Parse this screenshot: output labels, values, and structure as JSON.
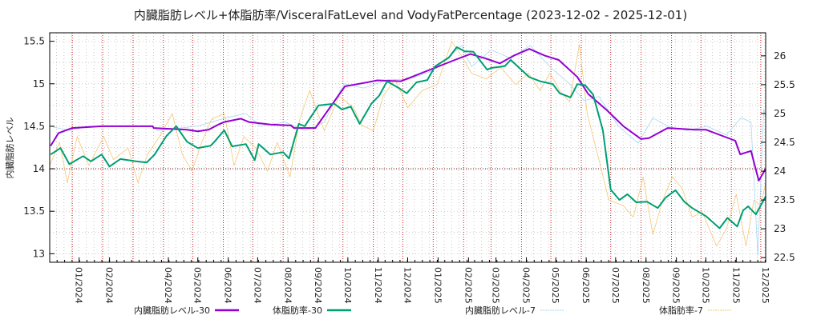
{
  "chart_data": {
    "type": "line",
    "title": "内臓脂肪レベル+体脂肪率/VisceralFatLevel and VodyFatPercentage (2023-12-02 - 2025-12-01)",
    "ylabel": "内臓脂肪レベル",
    "x_unit": "days since 2023-12-02",
    "xlim": [
      0,
      730
    ],
    "ylim_left": [
      12.9,
      15.6
    ],
    "ylim_right": [
      22.42,
      26.4
    ],
    "left_ticks": [
      "13",
      "13.5",
      "14",
      "14.5",
      "15",
      "15.5"
    ],
    "right_ticks": [
      "22.5",
      "23",
      "23.5",
      "24",
      "24.5",
      "25",
      "25.5",
      "26"
    ],
    "x_ticks": [
      {
        "day": 30,
        "label": "01/2024"
      },
      {
        "day": 61,
        "label": "02/2024"
      },
      {
        "day": 121,
        "label": "04/2024"
      },
      {
        "day": 151,
        "label": "05/2024"
      },
      {
        "day": 182,
        "label": "06/2024"
      },
      {
        "day": 212,
        "label": "07/2024"
      },
      {
        "day": 243,
        "label": "08/2024"
      },
      {
        "day": 274,
        "label": "09/2024"
      },
      {
        "day": 304,
        "label": "10/2024"
      },
      {
        "day": 335,
        "label": "11/2024"
      },
      {
        "day": 365,
        "label": "12/2024"
      },
      {
        "day": 396,
        "label": "01/2025"
      },
      {
        "day": 427,
        "label": "02/2025"
      },
      {
        "day": 455,
        "label": "03/2025"
      },
      {
        "day": 486,
        "label": "04/2025"
      },
      {
        "day": 516,
        "label": "05/2025"
      },
      {
        "day": 547,
        "label": "06/2025"
      },
      {
        "day": 577,
        "label": "07/2025"
      },
      {
        "day": 608,
        "label": "08/2025"
      },
      {
        "day": 639,
        "label": "09/2025"
      },
      {
        "day": 669,
        "label": "10/2025"
      },
      {
        "day": 700,
        "label": "11/2025"
      },
      {
        "day": 730,
        "label": "12/2025"
      }
    ],
    "month_lines": [
      23,
      54,
      85,
      116,
      146,
      177,
      207,
      238,
      269,
      299,
      330,
      360,
      391,
      422,
      450,
      481,
      511,
      542,
      572,
      603,
      634,
      664,
      695,
      725
    ],
    "reference_line": {
      "axis": "left",
      "value": 14
    },
    "legend_position": "bottom",
    "series": [
      {
        "name": "内臓脂肪レベル-7",
        "axis": "left",
        "color": "#a8d8f0",
        "width": 0.8,
        "points": [
          [
            0,
            14.5
          ],
          [
            20,
            14.45
          ],
          [
            40,
            14.5
          ],
          [
            105,
            14.5
          ],
          [
            110,
            14.45
          ],
          [
            150,
            14.5
          ],
          [
            180,
            14.6
          ],
          [
            200,
            14.65
          ],
          [
            215,
            14.5
          ],
          [
            240,
            14.55
          ],
          [
            260,
            14.45
          ],
          [
            280,
            14.55
          ],
          [
            300,
            15.0
          ],
          [
            320,
            14.95
          ],
          [
            345,
            15.05
          ],
          [
            365,
            15.05
          ],
          [
            390,
            15.15
          ],
          [
            405,
            15.3
          ],
          [
            420,
            15.45
          ],
          [
            430,
            15.2
          ],
          [
            450,
            15.4
          ],
          [
            470,
            15.3
          ],
          [
            490,
            15.45
          ],
          [
            510,
            15.2
          ],
          [
            530,
            15.0
          ],
          [
            545,
            14.8
          ],
          [
            560,
            14.85
          ],
          [
            580,
            14.5
          ],
          [
            600,
            14.3
          ],
          [
            615,
            14.6
          ],
          [
            630,
            14.5
          ],
          [
            650,
            14.45
          ],
          [
            670,
            14.5
          ],
          [
            690,
            14.4
          ],
          [
            705,
            14.6
          ],
          [
            715,
            14.55
          ],
          [
            722,
            12.98
          ],
          [
            728,
            14.7
          ],
          [
            730,
            14.6
          ]
        ]
      },
      {
        "name": "体脂肪率-7",
        "axis": "right",
        "color": "#f5c878",
        "width": 0.8,
        "points": [
          [
            0,
            24.1
          ],
          [
            10,
            24.5
          ],
          [
            18,
            23.8
          ],
          [
            28,
            24.6
          ],
          [
            40,
            24.1
          ],
          [
            55,
            24.6
          ],
          [
            65,
            24.2
          ],
          [
            80,
            24.4
          ],
          [
            90,
            23.8
          ],
          [
            100,
            24.3
          ],
          [
            112,
            24.6
          ],
          [
            125,
            25.0
          ],
          [
            135,
            24.3
          ],
          [
            145,
            24.0
          ],
          [
            155,
            24.5
          ],
          [
            165,
            24.9
          ],
          [
            178,
            25.0
          ],
          [
            188,
            24.1
          ],
          [
            198,
            24.6
          ],
          [
            210,
            24.4
          ],
          [
            222,
            24.0
          ],
          [
            232,
            24.5
          ],
          [
            245,
            23.9
          ],
          [
            255,
            24.9
          ],
          [
            265,
            25.4
          ],
          [
            280,
            24.7
          ],
          [
            295,
            25.3
          ],
          [
            310,
            25.1
          ],
          [
            318,
            24.8
          ],
          [
            330,
            24.7
          ],
          [
            340,
            25.3
          ],
          [
            352,
            25.6
          ],
          [
            365,
            25.1
          ],
          [
            380,
            25.4
          ],
          [
            395,
            25.5
          ],
          [
            410,
            26.25
          ],
          [
            420,
            26.0
          ],
          [
            430,
            25.7
          ],
          [
            445,
            25.6
          ],
          [
            460,
            25.8
          ],
          [
            475,
            25.5
          ],
          [
            488,
            25.7
          ],
          [
            500,
            25.4
          ],
          [
            510,
            25.7
          ],
          [
            520,
            25.4
          ],
          [
            530,
            25.2
          ],
          [
            540,
            26.2
          ],
          [
            548,
            25.0
          ],
          [
            560,
            24.2
          ],
          [
            570,
            23.5
          ],
          [
            585,
            23.4
          ],
          [
            595,
            23.2
          ],
          [
            605,
            23.9
          ],
          [
            615,
            22.9
          ],
          [
            625,
            23.5
          ],
          [
            635,
            23.9
          ],
          [
            645,
            23.7
          ],
          [
            655,
            23.2
          ],
          [
            665,
            23.3
          ],
          [
            680,
            22.7
          ],
          [
            690,
            23.0
          ],
          [
            700,
            23.6
          ],
          [
            710,
            22.7
          ],
          [
            718,
            23.5
          ],
          [
            725,
            23.4
          ],
          [
            730,
            23.8
          ]
        ]
      },
      {
        "name": "内臓脂肪レベル-30",
        "axis": "left",
        "color": "#9400d3",
        "width": 2,
        "points": [
          [
            1,
            14.27
          ],
          [
            9,
            14.42
          ],
          [
            23,
            14.48
          ],
          [
            53,
            14.5
          ],
          [
            105,
            14.5
          ],
          [
            106,
            14.48
          ],
          [
            140,
            14.46
          ],
          [
            151,
            14.44
          ],
          [
            162,
            14.46
          ],
          [
            172,
            14.52
          ],
          [
            178,
            14.55
          ],
          [
            195,
            14.59
          ],
          [
            203,
            14.55
          ],
          [
            225,
            14.52
          ],
          [
            246,
            14.51
          ],
          [
            249,
            14.48
          ],
          [
            271,
            14.48
          ],
          [
            301,
            14.97
          ],
          [
            325,
            15.02
          ],
          [
            334,
            15.04
          ],
          [
            358,
            15.03
          ],
          [
            413,
            15.28
          ],
          [
            429,
            15.35
          ],
          [
            444,
            15.3
          ],
          [
            459,
            15.24
          ],
          [
            473,
            15.33
          ],
          [
            489,
            15.41
          ],
          [
            505,
            15.33
          ],
          [
            519,
            15.28
          ],
          [
            538,
            15.08
          ],
          [
            549,
            14.88
          ],
          [
            568,
            14.69
          ],
          [
            585,
            14.5
          ],
          [
            603,
            14.35
          ],
          [
            611,
            14.36
          ],
          [
            630,
            14.48
          ],
          [
            658,
            14.46
          ],
          [
            669,
            14.46
          ],
          [
            699,
            14.33
          ],
          [
            704,
            14.17
          ],
          [
            715,
            14.21
          ],
          [
            723,
            13.86
          ],
          [
            730,
            14.0
          ]
        ]
      },
      {
        "name": "体脂肪率-30",
        "axis": "right",
        "color": "#009e73",
        "width": 2,
        "points": [
          [
            1,
            24.29
          ],
          [
            11,
            24.4
          ],
          [
            20,
            24.12
          ],
          [
            34,
            24.26
          ],
          [
            42,
            24.17
          ],
          [
            53,
            24.29
          ],
          [
            61,
            24.08
          ],
          [
            72,
            24.21
          ],
          [
            88,
            24.17
          ],
          [
            99,
            24.15
          ],
          [
            107,
            24.29
          ],
          [
            119,
            24.61
          ],
          [
            129,
            24.78
          ],
          [
            140,
            24.51
          ],
          [
            151,
            24.4
          ],
          [
            164,
            24.44
          ],
          [
            168,
            24.51
          ],
          [
            178,
            24.71
          ],
          [
            186,
            24.43
          ],
          [
            200,
            24.47
          ],
          [
            209,
            24.19
          ],
          [
            213,
            24.47
          ],
          [
            225,
            24.29
          ],
          [
            238,
            24.33
          ],
          [
            244,
            24.22
          ],
          [
            254,
            24.82
          ],
          [
            260,
            24.78
          ],
          [
            274,
            25.14
          ],
          [
            290,
            25.17
          ],
          [
            298,
            25.07
          ],
          [
            307,
            25.12
          ],
          [
            316,
            24.82
          ],
          [
            328,
            25.17
          ],
          [
            336,
            25.31
          ],
          [
            344,
            25.56
          ],
          [
            356,
            25.44
          ],
          [
            364,
            25.35
          ],
          [
            374,
            25.54
          ],
          [
            385,
            25.58
          ],
          [
            393,
            25.82
          ],
          [
            407,
            25.97
          ],
          [
            415,
            26.15
          ],
          [
            423,
            26.08
          ],
          [
            432,
            26.07
          ],
          [
            446,
            25.76
          ],
          [
            450,
            25.79
          ],
          [
            464,
            25.82
          ],
          [
            470,
            25.93
          ],
          [
            489,
            25.63
          ],
          [
            500,
            25.56
          ],
          [
            513,
            25.51
          ],
          [
            520,
            25.35
          ],
          [
            531,
            25.28
          ],
          [
            538,
            25.51
          ],
          [
            546,
            25.49
          ],
          [
            554,
            25.33
          ],
          [
            564,
            24.71
          ],
          [
            572,
            23.68
          ],
          [
            581,
            23.5
          ],
          [
            589,
            23.6
          ],
          [
            598,
            23.46
          ],
          [
            609,
            23.47
          ],
          [
            620,
            23.36
          ],
          [
            628,
            23.54
          ],
          [
            638,
            23.67
          ],
          [
            647,
            23.47
          ],
          [
            655,
            23.36
          ],
          [
            669,
            23.22
          ],
          [
            683,
            23.01
          ],
          [
            691,
            23.19
          ],
          [
            701,
            23.04
          ],
          [
            707,
            23.32
          ],
          [
            712,
            23.39
          ],
          [
            720,
            23.25
          ],
          [
            730,
            23.56
          ]
        ]
      }
    ],
    "legend": [
      {
        "label": "内臓脂肪レベル-30",
        "color": "#9400d3"
      },
      {
        "label": "体脂肪率-30",
        "color": "#009e73"
      },
      {
        "label": "内臓脂肪レベル-7",
        "color": "#a8d8f0"
      },
      {
        "label": "体脂肪率-7",
        "color": "#f5c878"
      }
    ]
  }
}
